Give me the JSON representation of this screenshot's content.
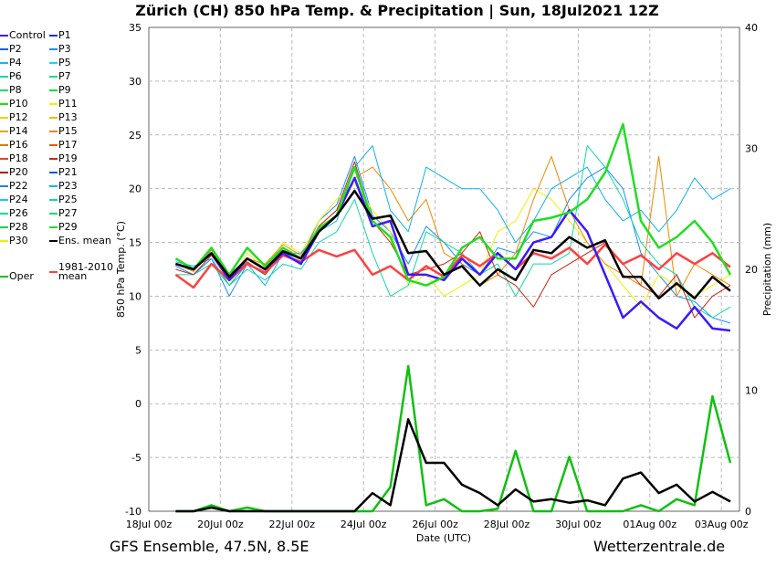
{
  "title": "Zürich  (CH)  850 hPa Temp. & Precipitation | Sun, 18Jul2021 12Z",
  "footer": {
    "left": "GFS Ensemble, 47.5N, 8.5E",
    "right": "Wetterzentrale.de"
  },
  "legend": [
    {
      "label": "Control",
      "color": "#3a1aff"
    },
    {
      "label": "P1",
      "color": "#0a2cff"
    },
    {
      "label": "P2",
      "color": "#1560f0"
    },
    {
      "label": "P3",
      "color": "#1a8cff"
    },
    {
      "label": "P4",
      "color": "#18b8e8"
    },
    {
      "label": "P5",
      "color": "#18d8e8"
    },
    {
      "label": "P6",
      "color": "#10d8a0"
    },
    {
      "label": "P7",
      "color": "#10e080"
    },
    {
      "label": "P8",
      "color": "#10e060"
    },
    {
      "label": "P9",
      "color": "#10e030"
    },
    {
      "label": "P10",
      "color": "#20e000"
    },
    {
      "label": "P11",
      "color": "#f0f000"
    },
    {
      "label": "P12",
      "color": "#f0d000"
    },
    {
      "label": "P13",
      "color": "#f0b800"
    },
    {
      "label": "P14",
      "color": "#f0a000"
    },
    {
      "label": "P15",
      "color": "#f08800"
    },
    {
      "label": "P16",
      "color": "#e07800"
    },
    {
      "label": "P17",
      "color": "#e06000"
    },
    {
      "label": "P18",
      "color": "#d84820"
    },
    {
      "label": "P19",
      "color": "#c82810"
    },
    {
      "label": "P20",
      "color": "#b01010"
    },
    {
      "label": "P21",
      "color": "#1050f0"
    },
    {
      "label": "P22",
      "color": "#1a80f0"
    },
    {
      "label": "P23",
      "color": "#10b0f0"
    },
    {
      "label": "P24",
      "color": "#10d0e8"
    },
    {
      "label": "P25",
      "color": "#10d8a8"
    },
    {
      "label": "P26",
      "color": "#10e090"
    },
    {
      "label": "P27",
      "color": "#10e060"
    },
    {
      "label": "P28",
      "color": "#10d840"
    },
    {
      "label": "P29",
      "color": "#20e020"
    },
    {
      "label": "P30",
      "color": "#f0f000"
    },
    {
      "label": "Ens. mean",
      "color": "#000000"
    },
    {
      "label": "Oper",
      "color": "#10c010"
    },
    {
      "label": "1981-2010 mean",
      "color": "#ff4040"
    }
  ],
  "chart_data": {
    "type": "line",
    "title": "Zürich  (CH)  850 hPa Temp. & Precipitation | Sun, 18Jul2021 12Z",
    "xlabel": "Date (UTC)",
    "ylabel": "850 hPa Temp. (°C)",
    "y2label": "Precipitation (mm)",
    "xticks": [
      "18Jul 00z",
      "20Jul 00z",
      "22Jul 00z",
      "24Jul 00z",
      "26Jul 00z",
      "28Jul 00z",
      "30Jul 00z",
      "01Aug 00z",
      "03Aug 00z"
    ],
    "xlim_days": [
      0,
      16.5
    ],
    "ylim": [
      -10,
      35
    ],
    "yticks": [
      -10,
      -5,
      0,
      5,
      10,
      15,
      20,
      25,
      30,
      35
    ],
    "y2lim": [
      0,
      40
    ],
    "y2ticks": [
      0,
      10,
      20,
      30,
      40
    ],
    "grid": true,
    "x_start_day": 0.75,
    "x_step_days": 0.5,
    "temperature": {
      "ens_mean": [
        13,
        12.5,
        14,
        11.8,
        13.5,
        12.5,
        14.2,
        13.5,
        16,
        17.5,
        19.8,
        17.2,
        17.5,
        14,
        14.2,
        12,
        12.8,
        11,
        12.5,
        11.5,
        14.3,
        14,
        15.5,
        14.5,
        15.2,
        11.8,
        11.8,
        9.8,
        11.2,
        9.8,
        11.8,
        10.5
      ],
      "climate_mean": [
        12,
        10.8,
        13,
        11.5,
        13,
        12.2,
        13.8,
        13.2,
        14.3,
        13.7,
        14.3,
        12,
        12.8,
        11.5,
        12.8,
        11.8,
        13.8,
        12.8,
        14,
        12.5,
        14,
        13.5,
        14.5,
        13,
        14.8,
        13,
        13.8,
        12.5,
        14,
        13,
        14,
        12.7
      ],
      "oper": [
        13.5,
        12.5,
        14.5,
        12,
        14.5,
        12.8,
        14.5,
        13.5,
        16.3,
        17.5,
        22,
        17,
        15.5,
        11.5,
        11,
        11.8,
        14.5,
        15.5,
        13.5,
        13.5,
        17,
        17.3,
        17.8,
        19,
        21.5,
        26,
        17,
        14.5,
        15.5,
        17,
        15,
        12
      ],
      "control": [
        13,
        12.5,
        14,
        11.5,
        13.5,
        12.5,
        14,
        13,
        16,
        17.5,
        21,
        16.5,
        17,
        12,
        12,
        11.5,
        13.5,
        12,
        14,
        12.5,
        15,
        15.5,
        18,
        16,
        12,
        8,
        9.5,
        8,
        7,
        9,
        7,
        6.8
      ],
      "members": [
        {
          "name": "P3",
          "values": [
            12.8,
            12,
            13.5,
            10,
            13,
            12,
            14,
            13.5,
            17,
            18.5,
            23,
            17.5,
            16,
            13,
            16.5,
            15,
            13,
            12,
            14.5,
            14,
            16,
            15.5,
            19,
            21,
            22,
            20,
            14,
            12,
            10,
            9.5,
            8,
            7.5
          ]
        },
        {
          "name": "P11",
          "values": [
            13,
            12.5,
            14,
            11,
            14,
            12.5,
            15,
            14,
            17,
            19,
            20.5,
            18,
            16,
            11,
            12,
            10,
            11,
            12,
            16,
            17,
            20,
            19,
            17,
            15,
            13,
            11,
            9,
            12,
            11,
            10,
            11,
            12
          ]
        },
        {
          "name": "P15",
          "values": [
            13,
            12.3,
            14.3,
            12,
            13.5,
            13,
            14.8,
            13.8,
            16.5,
            18,
            21,
            22,
            20,
            17,
            19,
            14,
            13,
            11,
            12,
            14,
            19,
            23,
            18,
            15,
            13,
            12,
            11,
            23,
            10,
            13,
            12,
            11
          ]
        },
        {
          "name": "P23",
          "values": [
            13.2,
            12.8,
            13.5,
            11,
            13,
            11,
            14,
            14,
            16,
            17,
            22,
            24,
            18,
            16,
            22,
            21,
            20,
            20,
            18,
            15,
            17,
            20,
            21,
            22,
            19,
            17,
            18,
            16,
            18,
            21,
            19,
            20
          ]
        },
        {
          "name": "P25",
          "values": [
            12,
            12,
            13,
            11,
            12.5,
            11.5,
            13,
            12.5,
            15,
            16,
            19,
            14,
            10,
            11,
            16,
            15,
            14,
            12,
            13,
            10,
            13,
            13,
            14,
            24,
            22,
            19,
            15,
            13,
            12,
            9,
            8,
            9
          ]
        },
        {
          "name": "P19",
          "values": [
            12.5,
            12,
            13.8,
            11.5,
            13.2,
            12,
            14,
            13,
            16.5,
            18,
            22.5,
            17,
            15,
            12,
            12.5,
            13,
            14,
            16,
            12,
            11,
            9,
            12,
            13,
            14,
            15,
            13,
            11,
            10,
            12,
            8,
            10,
            11
          ]
        }
      ]
    },
    "precipitation_mm": {
      "ens_mean": [
        0,
        0,
        0.3,
        0,
        0,
        0,
        0,
        0,
        0,
        0,
        0,
        1.5,
        0.5,
        7.6,
        4,
        4,
        2.2,
        1.5,
        0.5,
        1.8,
        0.8,
        1,
        0.7,
        0.9,
        0.5,
        2.7,
        3.2,
        1.5,
        2.2,
        0.8,
        1.6,
        0.8
      ],
      "oper": [
        0,
        0,
        0.5,
        0,
        0.3,
        0,
        0,
        0,
        0,
        0,
        0,
        0,
        2,
        12,
        0.5,
        1,
        0,
        0,
        0.2,
        5,
        0,
        0,
        4.5,
        0,
        0,
        0,
        0.5,
        0,
        1,
        0.5,
        9.5,
        4
      ]
    }
  }
}
